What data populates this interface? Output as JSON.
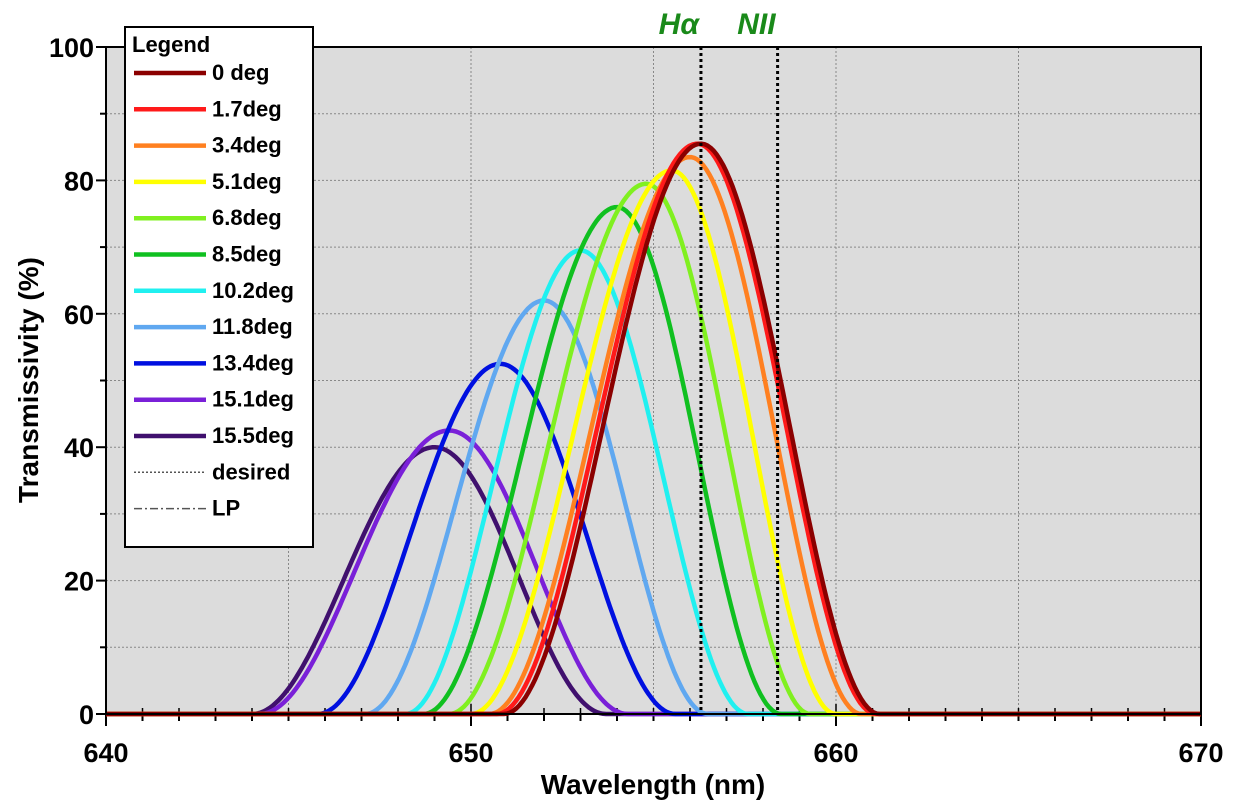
{
  "chart_data": {
    "type": "line",
    "title": "",
    "xlabel": "Wavelength (nm)",
    "ylabel": "Transmissivity (%)",
    "xlim": [
      640,
      670
    ],
    "ylim": [
      0,
      100
    ],
    "x_ticks": [
      640,
      650,
      660,
      670
    ],
    "y_ticks": [
      0,
      20,
      40,
      60,
      80,
      100
    ],
    "x_minor_step": 1,
    "y_minor_step": 10,
    "grid": true,
    "plot_background": "#dcdcdc",
    "legend_title": "Legend",
    "legend_position": "top-left",
    "series": [
      {
        "name": "0 deg",
        "color": "#8b0000",
        "peak_x": 656.3,
        "peak_y": 85.5,
        "lo": 650.9,
        "hi": 661.2
      },
      {
        "name": "1.7deg",
        "color": "#ff1a1a",
        "peak_x": 656.2,
        "peak_y": 85.5,
        "lo": 650.7,
        "hi": 661.1
      },
      {
        "name": "3.4deg",
        "color": "#ff8020",
        "peak_x": 656.0,
        "peak_y": 83.5,
        "lo": 650.5,
        "hi": 660.7
      },
      {
        "name": "5.1deg",
        "color": "#ffff00",
        "peak_x": 655.5,
        "peak_y": 81.5,
        "lo": 650.0,
        "hi": 660.0
      },
      {
        "name": "6.8deg",
        "color": "#80f020",
        "peak_x": 654.8,
        "peak_y": 79.5,
        "lo": 649.4,
        "hi": 659.3
      },
      {
        "name": "8.5deg",
        "color": "#10c020",
        "peak_x": 654.0,
        "peak_y": 76.0,
        "lo": 648.7,
        "hi": 658.5
      },
      {
        "name": "10.2deg",
        "color": "#20f0f0",
        "peak_x": 653.0,
        "peak_y": 69.5,
        "lo": 648.2,
        "hi": 657.6
      },
      {
        "name": "11.8deg",
        "color": "#60a8f0",
        "peak_x": 652.0,
        "peak_y": 62.0,
        "lo": 647.1,
        "hi": 656.5
      },
      {
        "name": "13.4deg",
        "color": "#0010e0",
        "peak_x": 650.8,
        "peak_y": 52.5,
        "lo": 645.8,
        "hi": 655.6
      },
      {
        "name": "15.1deg",
        "color": "#7a20d8",
        "peak_x": 649.4,
        "peak_y": 42.5,
        "lo": 644.2,
        "hi": 654.3
      },
      {
        "name": "15.5deg",
        "color": "#40106e",
        "peak_x": 649.0,
        "peak_y": 40.0,
        "lo": 644.0,
        "hi": 653.7
      },
      {
        "name": "desired",
        "color": "#555555",
        "style": "dotted"
      },
      {
        "name": "LP",
        "color": "#555555",
        "style": "dashdot"
      }
    ],
    "reference_lines": [
      {
        "x": 656.3,
        "label": "Hα",
        "color": "#1a8a1a"
      },
      {
        "x": 658.4,
        "label": "NII",
        "color": "#1a8a1a"
      }
    ]
  }
}
